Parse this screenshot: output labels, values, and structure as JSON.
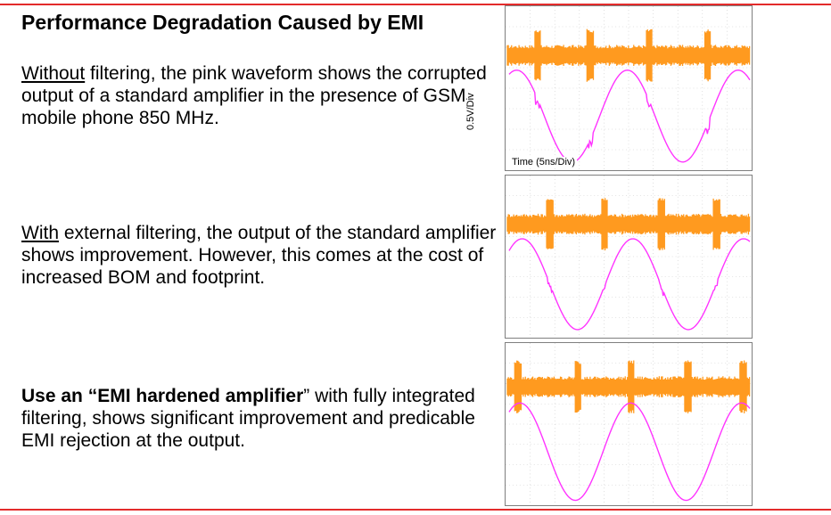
{
  "colors": {
    "accent_red": "#e32b2b",
    "orange_trace": "#ff9a1f",
    "pink_trace": "#ff33ff"
  },
  "title": "Performance Degradation Caused by EMI",
  "p1": {
    "lead": "Without",
    "rest": " filtering, the pink waveform shows the corrupted output of a standard amplifier in the presence of GSM mobile phone 850 MHz."
  },
  "p2": {
    "lead": "With",
    "rest": " external filtering, the output of the standard amplifier shows improvement. However, this comes at the cost of increased BOM and footprint."
  },
  "p3": {
    "lead": "Use an “EMI hardened amplifier",
    "rest": "” with fully integrated filtering, shows significant improvement and predicable EMI rejection at the output."
  },
  "scope_labels": {
    "y": "0.5V/Div",
    "x": "Time (5ns/Div)"
  }
}
